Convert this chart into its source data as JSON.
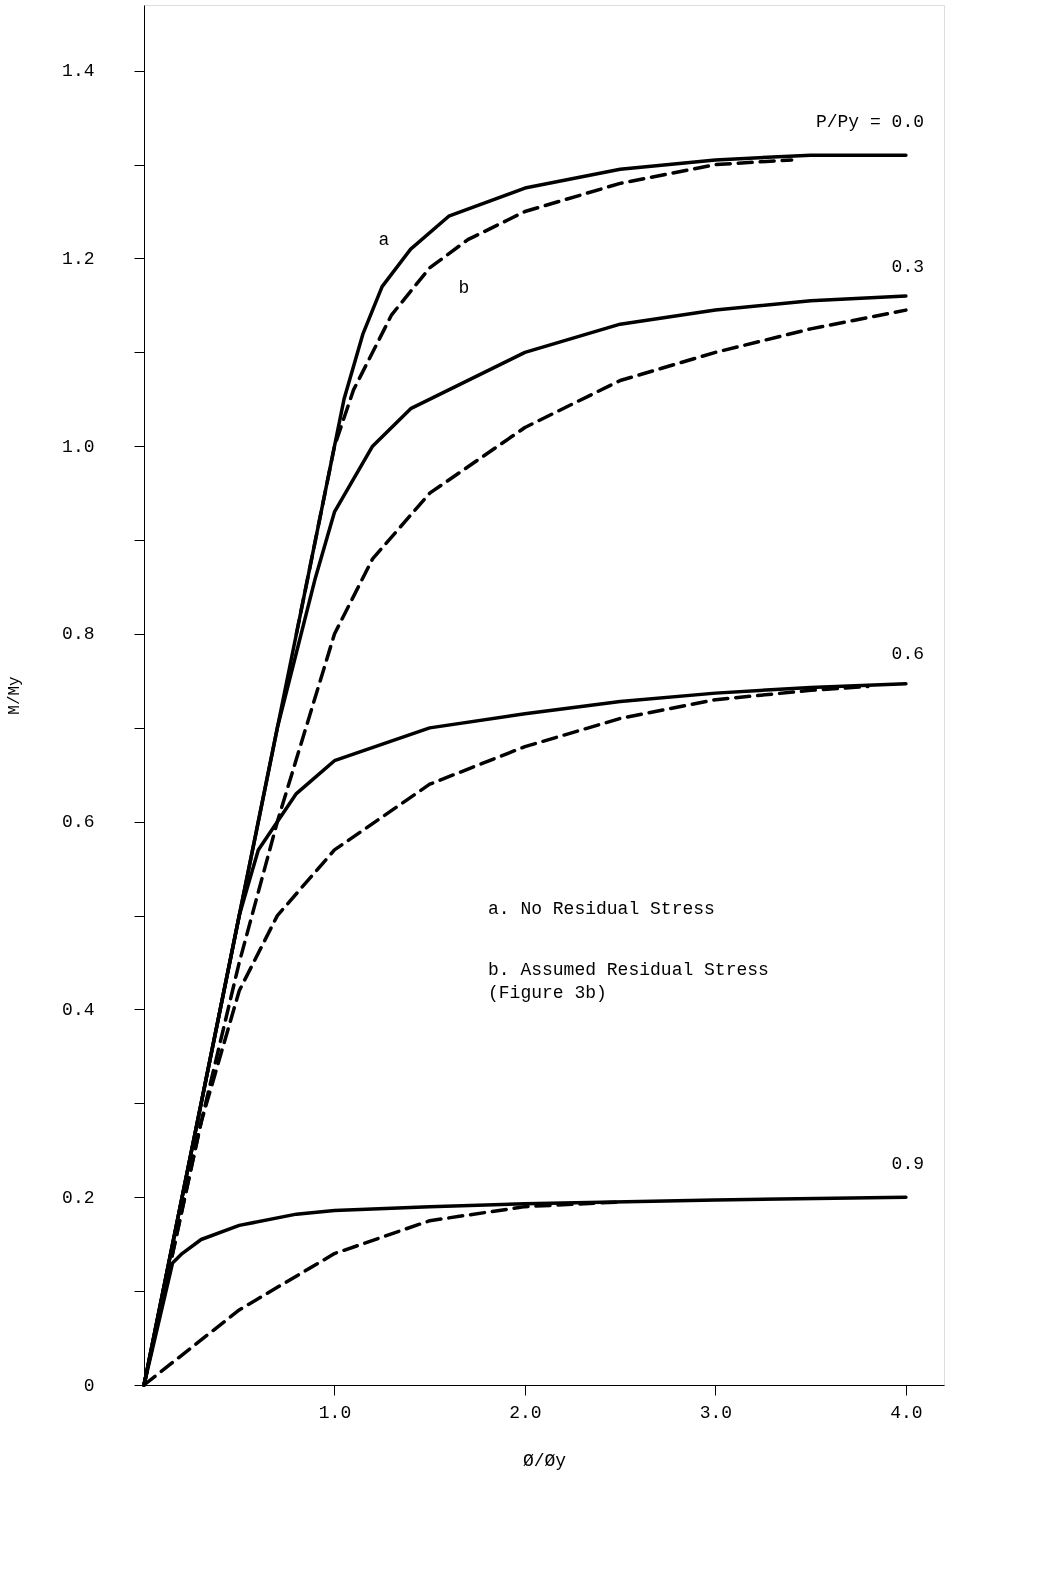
{
  "chart_data": {
    "type": "line",
    "xlabel": "Ø/Øy",
    "ylabel": "M/My",
    "xlim": [
      0,
      4.2
    ],
    "ylim": [
      0,
      1.47
    ],
    "xticks": [
      {
        "value": 1,
        "label": "1.0"
      },
      {
        "value": 2,
        "label": "2.0"
      },
      {
        "value": 3,
        "label": "3.0"
      },
      {
        "value": 4,
        "label": "4.0"
      }
    ],
    "yticks": [
      {
        "value": 0,
        "label": "0"
      },
      {
        "value": 0.1,
        "label": null
      },
      {
        "value": 0.2,
        "label": "0.2"
      },
      {
        "value": 0.3,
        "label": null
      },
      {
        "value": 0.4,
        "label": "0.4"
      },
      {
        "value": 0.5,
        "label": null
      },
      {
        "value": 0.6,
        "label": "0.6"
      },
      {
        "value": 0.7,
        "label": null
      },
      {
        "value": 0.8,
        "label": "0.8"
      },
      {
        "value": 0.9,
        "label": null
      },
      {
        "value": 1.0,
        "label": "1.0"
      },
      {
        "value": 1.1,
        "label": null
      },
      {
        "value": 1.2,
        "label": "1.2"
      },
      {
        "value": 1.3,
        "label": null
      },
      {
        "value": 1.4,
        "label": "1.4"
      }
    ],
    "grid": false,
    "marker": "none",
    "series": [
      {
        "color": "#000000",
        "line_style": "solid",
        "x": [
          0,
          0.5,
          0.8,
          0.95,
          1.05,
          1.15,
          1.25,
          1.4,
          1.6,
          2.0,
          2.5,
          3.0,
          3.5,
          4.0
        ],
        "values": [
          0,
          0.5,
          0.8,
          0.95,
          1.05,
          1.12,
          1.17,
          1.21,
          1.245,
          1.275,
          1.295,
          1.305,
          1.31,
          1.31
        ]
      },
      {
        "color": "#000000",
        "line_style": "dashed",
        "x": [
          0.8,
          1.0,
          1.1,
          1.3,
          1.5,
          1.7,
          2.0,
          2.5,
          3.0,
          3.4
        ],
        "values": [
          0.8,
          1.0,
          1.06,
          1.14,
          1.19,
          1.22,
          1.25,
          1.28,
          1.3,
          1.305
        ]
      },
      {
        "color": "#000000",
        "line_style": "solid",
        "x": [
          0,
          0.5,
          0.7,
          0.8,
          0.9,
          1.0,
          1.2,
          1.4,
          1.6,
          2.0,
          2.5,
          3.0,
          3.5,
          4.0
        ],
        "values": [
          0,
          0.5,
          0.7,
          0.78,
          0.86,
          0.93,
          1.0,
          1.04,
          1.06,
          1.1,
          1.13,
          1.145,
          1.155,
          1.16
        ]
      },
      {
        "color": "#000000",
        "line_style": "dashed",
        "x": [
          0,
          0.3,
          0.5,
          0.7,
          0.85,
          1.0,
          1.2,
          1.5,
          2.0,
          2.5,
          3.0,
          3.5,
          4.0
        ],
        "values": [
          0,
          0.28,
          0.45,
          0.6,
          0.7,
          0.8,
          0.88,
          0.95,
          1.02,
          1.07,
          1.1,
          1.125,
          1.145
        ]
      },
      {
        "color": "#000000",
        "line_style": "solid",
        "x": [
          0,
          0.4,
          0.5,
          0.6,
          0.8,
          1.0,
          1.5,
          2.0,
          2.5,
          3.0,
          3.5,
          4.0
        ],
        "values": [
          0,
          0.4,
          0.5,
          0.57,
          0.63,
          0.665,
          0.7,
          0.715,
          0.728,
          0.737,
          0.743,
          0.747
        ]
      },
      {
        "color": "#000000",
        "line_style": "dashed",
        "x": [
          0,
          0.3,
          0.5,
          0.7,
          1.0,
          1.5,
          2.0,
          2.5,
          3.0,
          3.5,
          3.8
        ],
        "values": [
          0,
          0.28,
          0.42,
          0.5,
          0.57,
          0.64,
          0.68,
          0.71,
          0.73,
          0.74,
          0.744
        ]
      },
      {
        "color": "#000000",
        "line_style": "solid",
        "x": [
          0,
          0.15,
          0.2,
          0.3,
          0.5,
          0.8,
          1.0,
          1.5,
          2.0,
          3.0,
          4.0
        ],
        "values": [
          0,
          0.13,
          0.14,
          0.155,
          0.17,
          0.182,
          0.186,
          0.19,
          0.193,
          0.197,
          0.2
        ]
      },
      {
        "color": "#000000",
        "line_style": "dashed",
        "x": [
          0,
          0.25,
          0.5,
          0.75,
          1.0,
          1.5,
          2.0,
          2.5
        ],
        "values": [
          0,
          0.04,
          0.08,
          0.11,
          0.14,
          0.175,
          0.19,
          0.195
        ]
      }
    ],
    "annotations": [
      "P/Py = 0.0",
      "0.3",
      "0.6",
      "0.9",
      "a",
      "b",
      "a.  No Residual Stress",
      "b.  Assumed Residual Stress",
      "    (Figure 3b)"
    ]
  }
}
